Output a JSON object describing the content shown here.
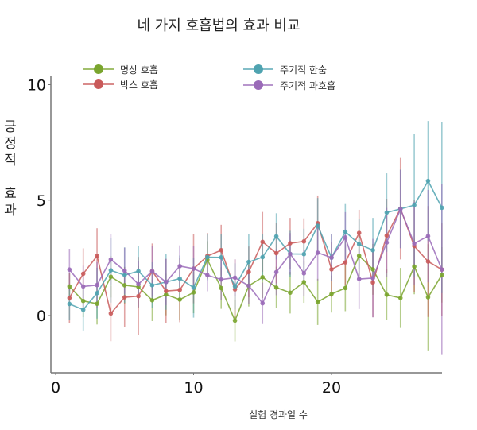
{
  "chart_data": {
    "type": "line",
    "title": "네 가지 호흡법의 효과 비교",
    "xlabel": "실험 경과일 수",
    "ylabel": "긍정적 효과",
    "xlim": [
      0,
      28.5
    ],
    "ylim": [
      -2.5,
      10.3
    ],
    "xticks": [
      0,
      10,
      20
    ],
    "yticks": [
      0,
      5,
      10
    ],
    "grid": false,
    "legend_position": "top",
    "error_bars": true,
    "x": [
      1,
      2,
      3,
      4,
      5,
      6,
      7,
      8,
      9,
      10,
      11,
      12,
      13,
      14,
      15,
      16,
      17,
      18,
      19,
      20,
      21,
      22,
      23,
      24,
      25,
      26,
      27,
      28
    ],
    "series": [
      {
        "name": "명상 호흡",
        "color": "#7aa52e",
        "values": [
          1.26,
          0.63,
          0.51,
          1.68,
          1.31,
          1.24,
          0.66,
          0.91,
          0.69,
          1.0,
          2.42,
          1.19,
          -0.22,
          1.29,
          1.66,
          1.21,
          0.99,
          1.45,
          0.59,
          0.93,
          1.19,
          2.59,
          2.0,
          0.9,
          0.76,
          2.12,
          0.79,
          1.76
        ],
        "errors": [
          0.6,
          0.7,
          0.9,
          0.9,
          0.8,
          0.9,
          0.9,
          0.9,
          0.9,
          0.9,
          0.8,
          0.9,
          0.9,
          0.9,
          0.9,
          0.9,
          0.9,
          0.9,
          1.0,
          0.8,
          1.0,
          0.9,
          1.1,
          1.1,
          1.3,
          1.2,
          2.3,
          1.2
        ]
      },
      {
        "name": "박스 호흡",
        "color": "#c95a5a",
        "values": [
          0.76,
          1.81,
          2.58,
          0.09,
          0.79,
          0.84,
          1.92,
          1.06,
          1.11,
          2.03,
          2.58,
          2.83,
          1.13,
          1.89,
          3.19,
          2.7,
          3.13,
          3.21,
          4.0,
          2.0,
          2.3,
          3.58,
          1.43,
          3.46,
          4.63,
          3.01,
          2.34,
          1.99
        ],
        "errors": [
          1.1,
          1.1,
          1.2,
          1.2,
          1.3,
          1.7,
          1.2,
          1.4,
          1.4,
          1.5,
          1.0,
          1.1,
          1.3,
          1.1,
          1.3,
          1.3,
          1.1,
          1.0,
          1.2,
          1.2,
          1.0,
          1.0,
          1.5,
          1.6,
          2.2,
          2.0,
          2.4,
          2.0
        ]
      },
      {
        "name": "주기적 한숨",
        "color": "#4fa3b0",
        "values": [
          0.5,
          0.25,
          0.97,
          1.96,
          1.75,
          1.92,
          1.31,
          1.45,
          1.6,
          1.21,
          2.53,
          2.52,
          1.26,
          2.32,
          2.53,
          3.43,
          2.67,
          2.66,
          3.89,
          2.51,
          3.63,
          3.09,
          2.83,
          4.46,
          4.62,
          4.78,
          5.83,
          4.67
        ],
        "errors": [
          0.7,
          0.9,
          1.1,
          1.4,
          1.2,
          1.1,
          1.0,
          1.2,
          1.0,
          1.3,
          1.0,
          1.0,
          1.0,
          1.2,
          1.0,
          1.0,
          1.0,
          1.1,
          1.2,
          1.0,
          1.2,
          1.1,
          1.4,
          1.7,
          1.7,
          3.1,
          2.6,
          3.7
        ]
      },
      {
        "name": "주기적 과호흡",
        "color": "#9a6ab8",
        "values": [
          1.99,
          1.26,
          1.32,
          2.43,
          1.94,
          1.36,
          1.92,
          1.45,
          2.14,
          2.03,
          1.75,
          1.56,
          1.64,
          1.29,
          0.53,
          1.88,
          2.67,
          1.83,
          2.72,
          2.51,
          3.38,
          1.58,
          1.62,
          3.16,
          4.61,
          3.12,
          3.44,
          1.99
        ],
        "errors": [
          0.9,
          0.9,
          1.0,
          1.1,
          1.0,
          1.0,
          1.1,
          1.0,
          0.9,
          1.0,
          0.7,
          0.9,
          0.8,
          0.8,
          0.9,
          1.0,
          0.9,
          1.0,
          1.2,
          1.0,
          1.1,
          1.3,
          1.7,
          1.5,
          1.7,
          1.8,
          2.0,
          3.7
        ]
      }
    ]
  },
  "page": {
    "title": "네 가지 호흡법의 효과 비교",
    "ylabel_lines": [
      "긍",
      "정",
      "적",
      "",
      "효",
      "과"
    ],
    "xlabel": "실험 경과일 수",
    "legend": [
      {
        "label": "명상 호흡",
        "color": "#7aa52e"
      },
      {
        "label": "박스 호흡",
        "color": "#c95a5a"
      },
      {
        "label": "주기적 한숨",
        "color": "#4fa3b0"
      },
      {
        "label": "주기적 과호흡",
        "color": "#9a6ab8"
      }
    ]
  }
}
